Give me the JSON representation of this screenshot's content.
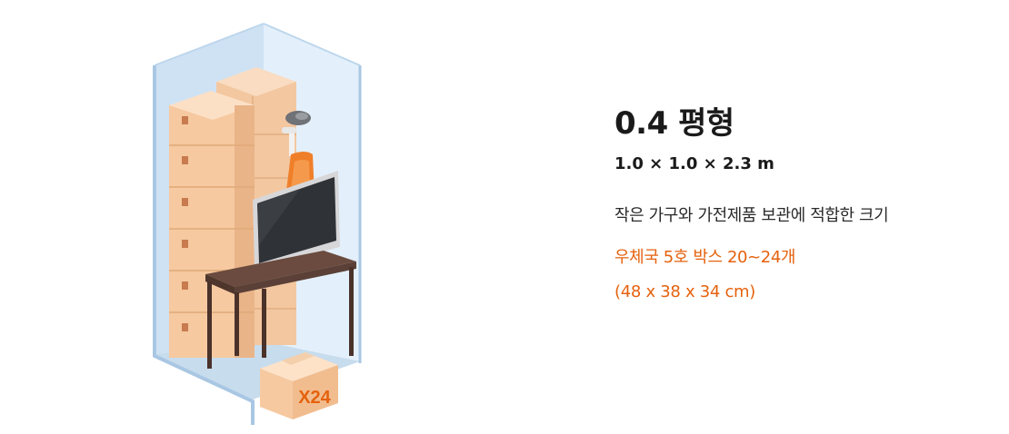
{
  "unit": {
    "title": "0.4 평형",
    "dimensions": "1.0 × 1.0 × 2.3 m",
    "description": "작은 가구와 가전제품 보관에 적합한 크기",
    "box_info": "우체국 5호 박스 20~24개",
    "box_size": "(48 x 38 x 34 cm)"
  },
  "illustration": {
    "box_count_label": "X24"
  },
  "colors": {
    "accent": "#e5620e",
    "text": "#1a1a1a",
    "box": "#f6c9a0",
    "room_wall": "#dcebf8",
    "desk": "#5a4037"
  }
}
